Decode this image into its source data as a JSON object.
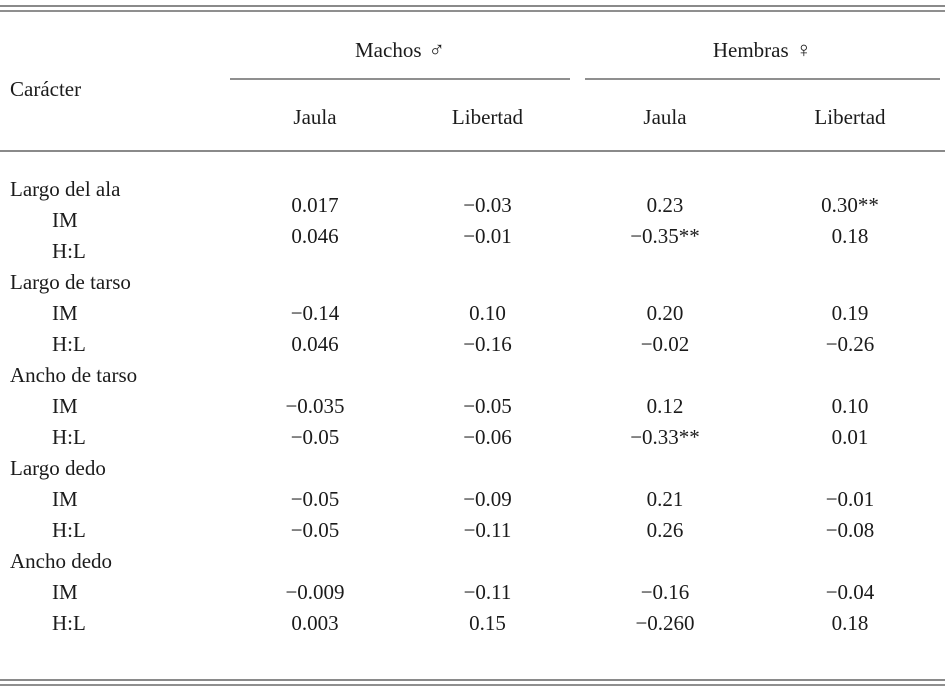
{
  "table": {
    "header": {
      "caracter": "Carácter",
      "machos": {
        "label": "Machos",
        "symbol": "♂"
      },
      "hembras": {
        "label": "Hembras",
        "symbol": "♀"
      },
      "sub": [
        "Jaula",
        "Libertad",
        "Jaula",
        "Libertad"
      ]
    },
    "groups": [
      {
        "label": "Largo del ala",
        "rows": [
          {
            "label": "IM",
            "values": [
              "0.017",
              "−0.03",
              "0.23",
              "0.30**"
            ]
          },
          {
            "label": "H:L",
            "values": [
              "0.046",
              "−0.01",
              "−0.35**",
              "0.18"
            ]
          }
        ]
      },
      {
        "label": "Largo de tarso",
        "rows": [
          {
            "label": "IM",
            "values": [
              "−0.14",
              "0.10",
              "0.20",
              "0.19"
            ]
          },
          {
            "label": "H:L",
            "values": [
              "0.046",
              "−0.16",
              "−0.02",
              "−0.26"
            ]
          }
        ]
      },
      {
        "label": "Ancho de tarso",
        "rows": [
          {
            "label": "IM",
            "values": [
              "−0.035",
              "−0.05",
              "0.12",
              "0.10"
            ]
          },
          {
            "label": "H:L",
            "values": [
              "−0.05",
              "−0.06",
              "−0.33**",
              "0.01"
            ]
          }
        ]
      },
      {
        "label": "Largo dedo",
        "rows": [
          {
            "label": "IM",
            "values": [
              "−0.05",
              "−0.09",
              "0.21",
              "−0.01"
            ]
          },
          {
            "label": "H:L",
            "values": [
              "−0.05",
              "−0.11",
              "0.26",
              "−0.08"
            ]
          }
        ]
      },
      {
        "label": "Ancho dedo",
        "rows": [
          {
            "label": "IM",
            "values": [
              "−0.009",
              "−0.11",
              "−0.16",
              "−0.04"
            ]
          },
          {
            "label": "H:L",
            "values": [
              "0.003",
              "0.15",
              "−0.260",
              "0.18"
            ]
          }
        ]
      }
    ]
  }
}
